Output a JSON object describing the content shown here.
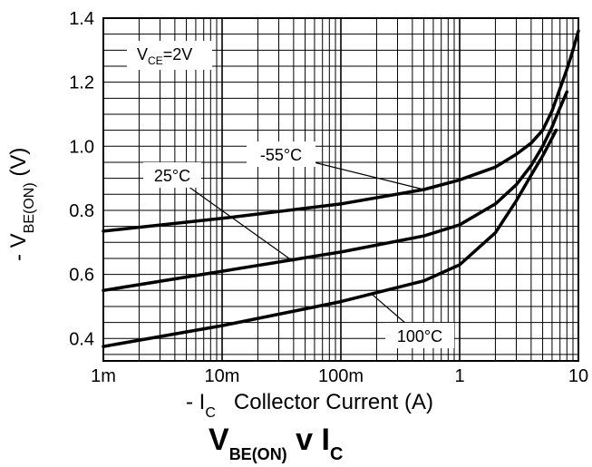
{
  "chart_data": {
    "type": "line",
    "title": {
      "main": "V",
      "sub1": "BE(ON)",
      "mid": " v I",
      "sub2": "C"
    },
    "xlabel": {
      "prefix": "- I",
      "sub": "C",
      "text": "Collector Current (A)"
    },
    "ylabel": {
      "prefix": "- V",
      "sub": "BE(ON)",
      "suffix": " (V)"
    },
    "xscale": "log",
    "xlim": [
      0.001,
      10
    ],
    "ylim": [
      0.33,
      1.4
    ],
    "grid": true,
    "x_tick_values": [
      0.001,
      0.01,
      0.1,
      1,
      10
    ],
    "x_tick_labels": [
      "1m",
      "10m",
      "100m",
      "1",
      "10"
    ],
    "y_tick_values": [
      0.4,
      0.6,
      0.8,
      1.0,
      1.2,
      1.4
    ],
    "y_tick_labels": [
      "0.4",
      "0.6",
      "0.8",
      "1.0",
      "1.2",
      "1.4"
    ],
    "condition": {
      "prefix": "V",
      "sub": "CE",
      "suffix": "=2V"
    },
    "series": [
      {
        "name": "-55°C",
        "x": [
          0.001,
          0.01,
          0.1,
          0.5,
          1,
          2,
          3,
          4,
          5,
          6,
          7,
          8,
          9,
          10
        ],
        "y": [
          0.735,
          0.775,
          0.82,
          0.865,
          0.895,
          0.935,
          0.975,
          1.01,
          1.05,
          1.11,
          1.18,
          1.24,
          1.3,
          1.36
        ]
      },
      {
        "name": "25°C",
        "x": [
          0.001,
          0.01,
          0.1,
          0.5,
          1,
          2,
          3,
          4,
          5,
          6,
          7,
          8
        ],
        "y": [
          0.55,
          0.61,
          0.67,
          0.72,
          0.755,
          0.82,
          0.88,
          0.94,
          1.0,
          1.06,
          1.12,
          1.17
        ]
      },
      {
        "name": "100°C",
        "x": [
          0.001,
          0.01,
          0.1,
          0.5,
          1,
          2,
          3,
          4,
          5,
          6.5
        ],
        "y": [
          0.375,
          0.44,
          0.515,
          0.58,
          0.63,
          0.73,
          0.83,
          0.91,
          0.97,
          1.05
        ]
      }
    ]
  }
}
